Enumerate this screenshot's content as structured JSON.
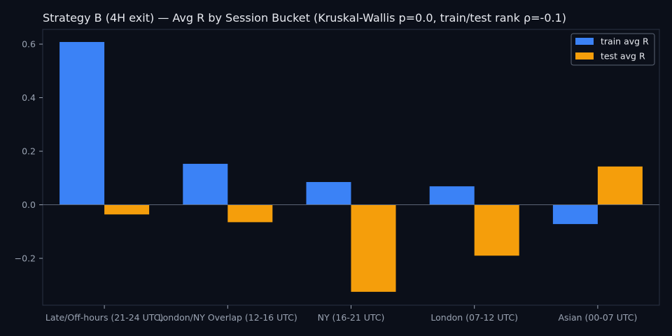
{
  "colors": {
    "background": "#0b0f19",
    "plot_border": "#2a3142",
    "zero_line": "#5b6475",
    "text": "#e6e8ee",
    "tick_text": "#9aa3b2",
    "train": "#3b82f6",
    "test": "#f59e0b"
  },
  "chart_data": {
    "type": "bar",
    "title": "Strategy B (4H exit) — Avg R by Session Bucket (Kruskal-Wallis p=0.0, train/test rank ρ=-0.1)",
    "xlabel": "",
    "ylabel": "",
    "categories": [
      "Late/Off-hours (21-24 UTC)",
      "London/NY Overlap (12-16 UTC)",
      "NY (16-21 UTC)",
      "London (07-12 UTC)",
      "Asian (00-07 UTC)"
    ],
    "series": [
      {
        "name": "train avg R",
        "color": "#3b82f6",
        "values": [
          0.608,
          0.153,
          0.085,
          0.069,
          -0.072
        ]
      },
      {
        "name": "test avg R",
        "color": "#f59e0b",
        "values": [
          -0.036,
          -0.065,
          -0.325,
          -0.19,
          0.143
        ]
      }
    ],
    "ylim": [
      -0.375,
      0.655
    ],
    "yticks": [
      -0.2,
      0.0,
      0.2,
      0.4,
      0.6
    ],
    "ytick_labels": [
      "−0.2",
      "0.0",
      "0.2",
      "0.4",
      "0.6"
    ],
    "legend_position": "top-right",
    "grid": false
  }
}
